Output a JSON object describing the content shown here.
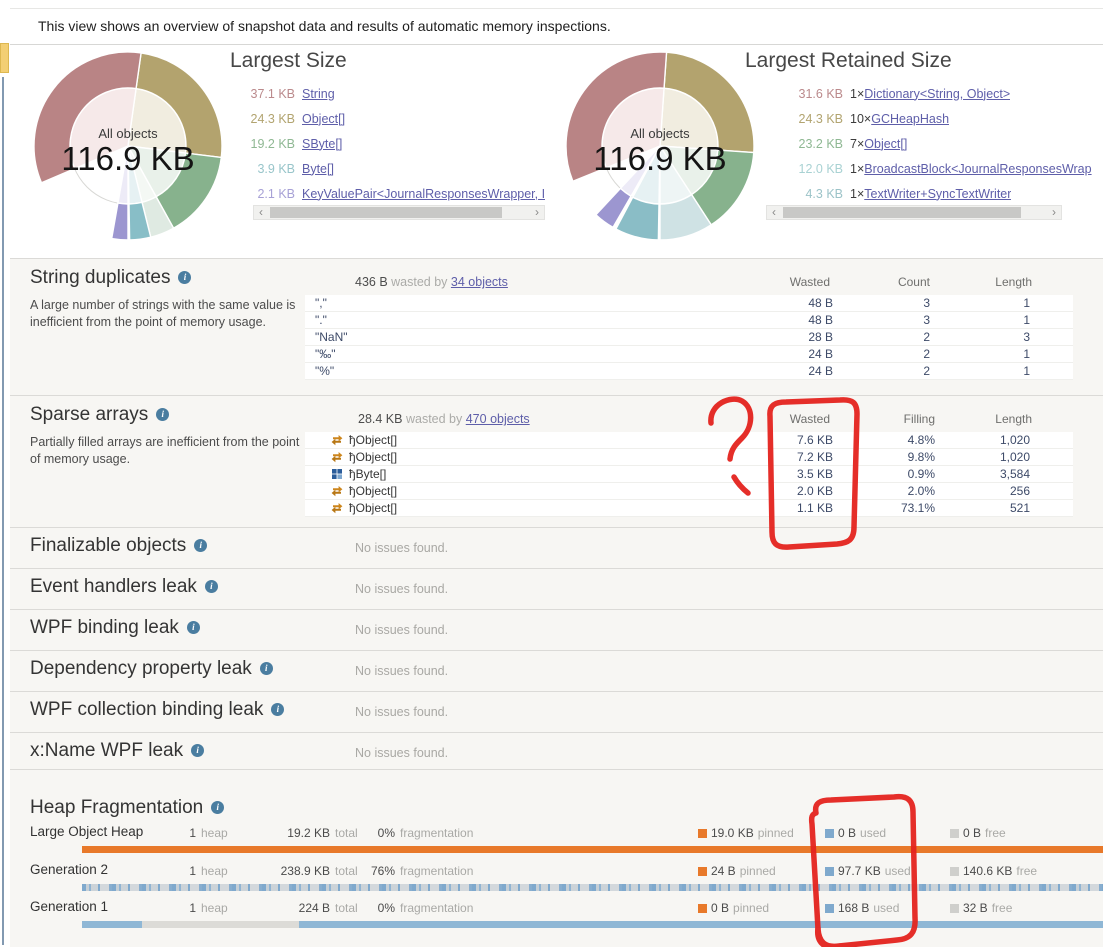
{
  "info_bar": {
    "text": "This view shows an overview of snapshot data and results of automatic memory inspections."
  },
  "icons": {
    "scroll_left": "‹",
    "scroll_right": "›",
    "info": "i"
  },
  "charts": [
    {
      "title": "Largest Size",
      "center_label": "All objects",
      "center_value": "116.9 KB",
      "items": [
        {
          "size": "37.1 KB",
          "count": "",
          "name": "String",
          "size_color": "#bb8a8c"
        },
        {
          "size": "24.3 KB",
          "count": "",
          "name": "Object[]",
          "size_color": "#b2a470"
        },
        {
          "size": "19.2 KB",
          "count": "",
          "name": "SByte[]",
          "size_color": "#8fb893"
        },
        {
          "size": "3.9 KB",
          "count": "",
          "name": "Byte[]",
          "size_color": "#98c5ca"
        },
        {
          "size": "2.1 KB",
          "count": "",
          "name": "KeyValuePair<JournalResponsesWrapper, I",
          "size_color": "#a7a1d6"
        }
      ],
      "segments": [
        {
          "from": 8,
          "to": 97,
          "color": "#b3a36e",
          "pale": "#f1ede0"
        },
        {
          "from": 97,
          "to": 151,
          "color": "#87b28d",
          "pale": "#e9f1ea"
        },
        {
          "from": 151,
          "to": 166,
          "color": "#dfeae2",
          "pale": "#f4f8f4"
        },
        {
          "from": 166,
          "to": 179,
          "color": "#88bec7",
          "pale": "#e6f1f3"
        },
        {
          "from": 180,
          "to": 190,
          "color": "#9c96d0",
          "pale": "#edebf7"
        },
        {
          "from": 247,
          "to": 368,
          "color": "#b98485",
          "pale": "#f6e9e9"
        }
      ]
    },
    {
      "title": "Largest Retained Size",
      "center_label": "All objects",
      "center_value": "116.9 KB",
      "items": [
        {
          "size": "31.6 KB",
          "count": "1×",
          "name": "Dictionary<String, Object>",
          "size_color": "#bb8a8c"
        },
        {
          "size": "24.3 KB",
          "count": "10×",
          "name": "GCHeapHash",
          "size_color": "#b2a470"
        },
        {
          "size": "23.2 KB",
          "count": "7×",
          "name": "Object[]",
          "size_color": "#8fb893"
        },
        {
          "size": "12.0 KB",
          "count": "1×",
          "name": "BroadcastBlock<JournalResponsesWrap",
          "size_color": "#a9d2d3"
        },
        {
          "size": "4.3 KB",
          "count": "1×",
          "name": "TextWriter+SyncTextWriter",
          "size_color": "#9cc3c8"
        }
      ],
      "segments": [
        {
          "from": 4,
          "to": 94,
          "color": "#b3a36e",
          "pale": "#f1ede0"
        },
        {
          "from": 94,
          "to": 147,
          "color": "#87b28d",
          "pale": "#e9f1ea"
        },
        {
          "from": 147,
          "to": 180,
          "color": "#cfe2e4",
          "pale": "#eef5f5"
        },
        {
          "from": 181,
          "to": 208,
          "color": "#8abdc6",
          "pale": "#e6f1f3"
        },
        {
          "from": 210,
          "to": 223,
          "color": "#9c96d0",
          "pale": "#edebf7"
        },
        {
          "from": 248,
          "to": 364,
          "color": "#b98485",
          "pale": "#f6e9e9"
        }
      ]
    }
  ],
  "sections": {
    "string_duplicates": {
      "title": "String duplicates",
      "summary": {
        "amount": "436 B",
        "label": "wasted by",
        "link": "34 objects"
      },
      "description_lines": [
        "A large number of strings with the same value is",
        "inefficient from the point of memory usage."
      ],
      "columns": [
        "Wasted",
        "Count",
        "Length"
      ],
      "rows": [
        {
          "name": "\",\"",
          "wasted": "48 B",
          "count": "3",
          "length": "1"
        },
        {
          "name": "\".\"",
          "wasted": "48 B",
          "count": "3",
          "length": "1"
        },
        {
          "name": "\"NaN\"",
          "wasted": "28 B",
          "count": "2",
          "length": "3"
        },
        {
          "name": "\"‰\"",
          "wasted": "24 B",
          "count": "2",
          "length": "1"
        },
        {
          "name": "\"%\"",
          "wasted": "24 B",
          "count": "2",
          "length": "1"
        }
      ]
    },
    "sparse_arrays": {
      "title": "Sparse arrays",
      "summary": {
        "amount": "28.4 KB",
        "label": "wasted by",
        "link": "470 objects"
      },
      "description_lines": [
        "Partially filled arrays are inefficient from the point",
        "of memory usage."
      ],
      "columns": [
        "Wasted",
        "Filling",
        "Length"
      ],
      "rows": [
        {
          "icon": "swap",
          "name": "ђObject[]",
          "wasted": "7.6 KB",
          "filling": "4.8%",
          "length": "1,020"
        },
        {
          "icon": "swap",
          "name": "ђObject[]",
          "wasted": "7.2 KB",
          "filling": "9.8%",
          "length": "1,020"
        },
        {
          "icon": "struct",
          "name": "ђByte[]",
          "wasted": "3.5 KB",
          "filling": "0.9%",
          "length": "3,584"
        },
        {
          "icon": "swap",
          "name": "ђObject[]",
          "wasted": "2.0 KB",
          "filling": "2.0%",
          "length": "256"
        },
        {
          "icon": "swap",
          "name": "ђObject[]",
          "wasted": "1.1 KB",
          "filling": "73.1%",
          "length": "521"
        }
      ]
    },
    "no_issue_sections": [
      {
        "title": "Finalizable objects",
        "status": "No issues found."
      },
      {
        "title": "Event handlers leak",
        "status": "No issues found."
      },
      {
        "title": "WPF binding leak",
        "status": "No issues found."
      },
      {
        "title": "Dependency property leak",
        "status": "No issues found."
      },
      {
        "title": "WPF collection binding leak",
        "status": "No issues found."
      },
      {
        "title": "x:Name WPF leak",
        "status": "No issues found."
      }
    ],
    "heap": {
      "title": "Heap Fragmentation",
      "rows": [
        {
          "name": "Large Object Heap",
          "heaps": "1",
          "heaps_label": "heap",
          "total": "19.2 KB",
          "total_label": "total",
          "frag": "0%",
          "frag_label": "fragmentation",
          "pinned": "19.0 KB",
          "pinned_label": "pinned",
          "used": "0 B",
          "used_label": "used",
          "free": "0 B",
          "free_label": "free",
          "bar": "loh"
        },
        {
          "name": "Generation 2",
          "heaps": "1",
          "heaps_label": "heap",
          "total": "238.9 KB",
          "total_label": "total",
          "frag": "76%",
          "frag_label": "fragmentation",
          "pinned": "24 B",
          "pinned_label": "pinned",
          "used": "97.7 KB",
          "used_label": "used",
          "free": "140.6 KB",
          "free_label": "free",
          "bar": "gen2"
        },
        {
          "name": "Generation 1",
          "heaps": "1",
          "heaps_label": "heap",
          "total": "224 B",
          "total_label": "total",
          "frag": "0%",
          "frag_label": "fragmentation",
          "pinned": "0 B",
          "pinned_label": "pinned",
          "used": "168 B",
          "used_label": "used",
          "free": "32 B",
          "free_label": "free",
          "bar": "gen1"
        }
      ]
    }
  },
  "colors": {
    "pinned": "#e8792a",
    "used": "#7fa9cd",
    "free": "#cfcfcc",
    "annotation": "#e4231e",
    "link": "#5e5ea9"
  }
}
